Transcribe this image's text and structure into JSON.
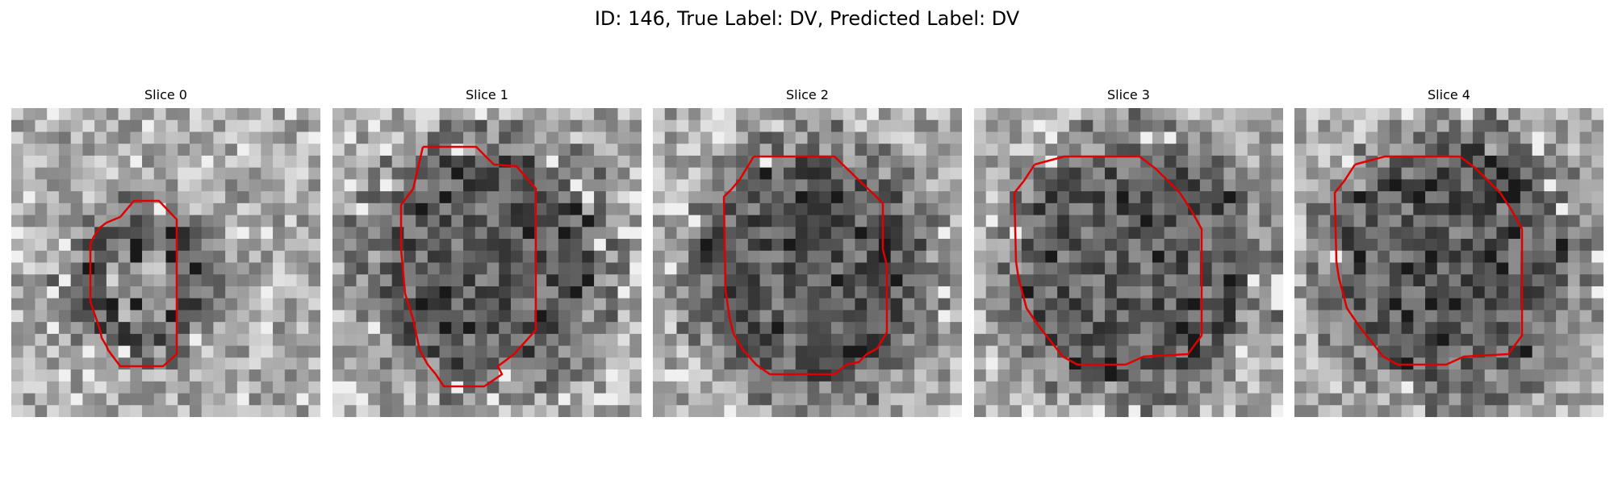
{
  "figure": {
    "title": "ID: 146, True Label: DV, Predicted Label: DV",
    "contour_color": "#e00000",
    "colormap": "grayscale"
  },
  "panels": [
    {
      "title": "Slice 0"
    },
    {
      "title": "Slice 1"
    },
    {
      "title": "Slice 2"
    },
    {
      "title": "Slice 3"
    },
    {
      "title": "Slice 4"
    }
  ]
}
